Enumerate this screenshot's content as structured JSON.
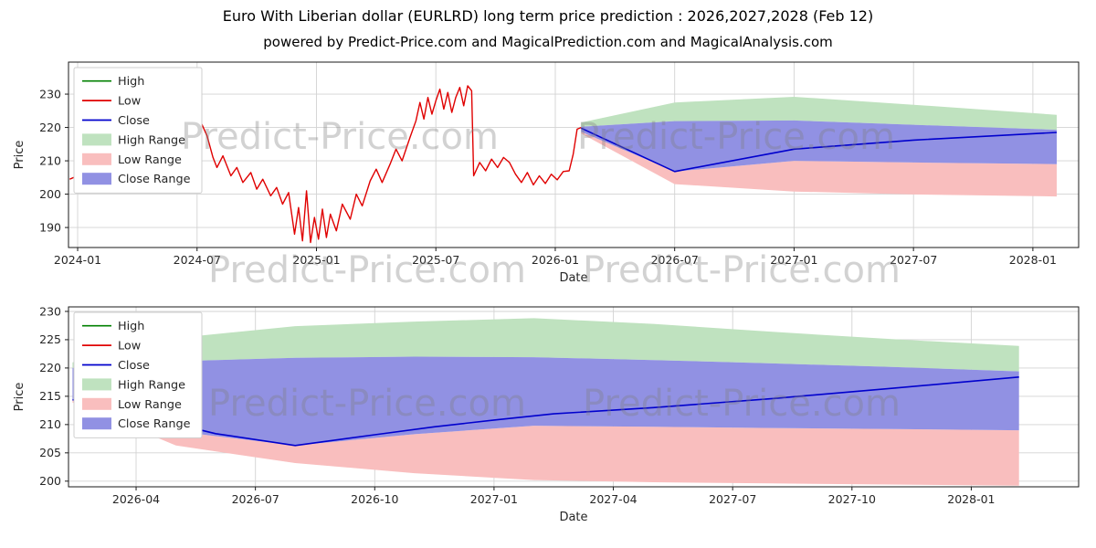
{
  "header": {
    "title": "Euro With Liberian dollar (EURLRD) long term price prediction : 2026,2027,2028 (Feb 12)",
    "subtitle": "powered by Predict-Price.com and MagicalPrediction.com and MagicalAnalysis.com"
  },
  "watermark": {
    "text": "Predict-Price.com"
  },
  "colors": {
    "high": "#008000",
    "low": "#e00000",
    "close": "#0000cd",
    "high_range": "#bfe2bf",
    "low_range": "#f9bebe",
    "close_range": "#9191e3",
    "grid": "#d3d3d3",
    "frame": "#1a1a1a",
    "text": "#262626"
  },
  "chart_data": [
    {
      "type": "line",
      "title": "",
      "xlabel": "Date",
      "ylabel": "Price",
      "x_unit": "months since 2024-01",
      "xlim": [
        -0.46,
        50.3
      ],
      "ylim": [
        184.0,
        239.6
      ],
      "grid": true,
      "legend_position": "upper left",
      "x_ticks": [
        {
          "v": 0,
          "label": "2024-01"
        },
        {
          "v": 6,
          "label": "2024-07"
        },
        {
          "v": 12,
          "label": "2025-01"
        },
        {
          "v": 18,
          "label": "2025-07"
        },
        {
          "v": 24,
          "label": "2026-01"
        },
        {
          "v": 30,
          "label": "2026-07"
        },
        {
          "v": 36,
          "label": "2027-01"
        },
        {
          "v": 42,
          "label": "2027-07"
        },
        {
          "v": 48,
          "label": "2028-01"
        }
      ],
      "y_ticks": [
        190,
        200,
        210,
        220,
        230
      ],
      "legend": [
        {
          "label": "High",
          "type": "line",
          "color_key": "high"
        },
        {
          "label": "Low",
          "type": "line",
          "color_key": "low"
        },
        {
          "label": "Close",
          "type": "line",
          "color_key": "close"
        },
        {
          "label": "High Range",
          "type": "patch",
          "color_key": "high_range"
        },
        {
          "label": "Low Range",
          "type": "patch",
          "color_key": "low_range"
        },
        {
          "label": "Close Range",
          "type": "patch",
          "color_key": "close_range"
        }
      ],
      "bands": [
        {
          "name": "high-range",
          "color_key": "high_range",
          "x": [
            25.3,
            30,
            36,
            42,
            49.2
          ],
          "upper": [
            221.5,
            227.5,
            229.2,
            226.8,
            223.8
          ],
          "lower": [
            220.2,
            221.9,
            222.1,
            220.8,
            219.3
          ]
        },
        {
          "name": "low-range",
          "color_key": "low_range",
          "x": [
            25.3,
            30,
            36,
            42,
            49.2
          ],
          "upper": [
            218.7,
            206.8,
            210.0,
            209.5,
            209.0
          ],
          "lower": [
            218.2,
            203.0,
            200.8,
            199.9,
            199.3
          ]
        },
        {
          "name": "close-range",
          "color_key": "close_range",
          "x": [
            25.3,
            30,
            36,
            42,
            49.2
          ],
          "upper": [
            220.2,
            221.9,
            222.1,
            220.8,
            219.3
          ],
          "lower": [
            218.7,
            206.8,
            210.0,
            209.5,
            209.0
          ]
        }
      ],
      "lines": [
        {
          "name": "close-prediction",
          "color_key": "close",
          "width": 1.6,
          "x": [
            25.3,
            30,
            36,
            42,
            49.2
          ],
          "y": [
            219.8,
            206.8,
            213.5,
            216.2,
            218.5
          ]
        },
        {
          "name": "history-low",
          "color_key": "low",
          "width": 1.4,
          "x": [
            -0.4,
            0,
            0.4,
            0.7,
            1,
            1.3,
            1.7,
            2,
            2.2,
            2.5,
            2.8,
            3,
            3.2,
            3.5,
            3.8,
            4,
            4.3,
            4.6,
            5,
            5.3,
            5.7,
            6,
            6.2,
            6.5,
            6.8,
            7,
            7.3,
            7.7,
            8,
            8.3,
            8.7,
            9,
            9.3,
            9.7,
            10,
            10.3,
            10.6,
            10.9,
            11.1,
            11.3,
            11.5,
            11.7,
            11.9,
            12.1,
            12.3,
            12.5,
            12.7,
            13,
            13.3,
            13.7,
            14,
            14.3,
            14.7,
            15,
            15.3,
            15.7,
            16,
            16.3,
            16.7,
            17,
            17.2,
            17.4,
            17.6,
            17.8,
            18,
            18.2,
            18.4,
            18.6,
            18.8,
            19,
            19.2,
            19.4,
            19.6,
            19.8,
            19.9,
            20.2,
            20.5,
            20.8,
            21.1,
            21.4,
            21.7,
            22,
            22.3,
            22.6,
            22.9,
            23.2,
            23.5,
            23.8,
            24.1,
            24.4,
            24.7,
            24.9,
            25.1,
            25.3
          ],
          "y": [
            204.5,
            205.5,
            207.5,
            205,
            212,
            215,
            209.5,
            214,
            217.5,
            211.5,
            216,
            220.5,
            214.5,
            218,
            213.5,
            219.5,
            221,
            215.5,
            218.5,
            213.5,
            216.5,
            214,
            221.5,
            217.5,
            211,
            208,
            211.5,
            205.5,
            208,
            203.5,
            206.5,
            201.5,
            204.5,
            199.5,
            202,
            197,
            200.5,
            188,
            196,
            186,
            201,
            185.5,
            193,
            186.5,
            195.5,
            187,
            194,
            189,
            197,
            192.5,
            200,
            196.5,
            204,
            207.5,
            203.5,
            209,
            213.5,
            210,
            217,
            222,
            227.5,
            222.5,
            229,
            224,
            228,
            231.5,
            225.5,
            230.5,
            224.5,
            229,
            232,
            226.5,
            232.5,
            231,
            205.5,
            209.5,
            207,
            210.5,
            208,
            211,
            209.5,
            206,
            203.5,
            206.5,
            202.8,
            205.5,
            203.2,
            206,
            204.3,
            206.8,
            207,
            212,
            219.5,
            220
          ]
        }
      ]
    },
    {
      "type": "line",
      "title": "",
      "xlabel": "Date",
      "ylabel": "Price",
      "x_unit": "months since 2024-01",
      "xlim": [
        25.3,
        50.7
      ],
      "ylim": [
        199.0,
        230.8
      ],
      "grid": true,
      "legend_position": "upper left",
      "x_ticks": [
        {
          "v": 27,
          "label": "2026-04"
        },
        {
          "v": 30,
          "label": "2026-07"
        },
        {
          "v": 33,
          "label": "2026-10"
        },
        {
          "v": 36,
          "label": "2027-01"
        },
        {
          "v": 39,
          "label": "2027-04"
        },
        {
          "v": 42,
          "label": "2027-07"
        },
        {
          "v": 45,
          "label": "2027-10"
        },
        {
          "v": 48,
          "label": "2028-01"
        }
      ],
      "y_ticks": [
        200,
        205,
        210,
        215,
        220,
        225,
        230
      ],
      "legend": [
        {
          "label": "High",
          "type": "line",
          "color_key": "high"
        },
        {
          "label": "Low",
          "type": "line",
          "color_key": "low"
        },
        {
          "label": "Close",
          "type": "line",
          "color_key": "close"
        },
        {
          "label": "High Range",
          "type": "patch",
          "color_key": "high_range"
        },
        {
          "label": "Low Range",
          "type": "patch",
          "color_key": "low_range"
        },
        {
          "label": "Close Range",
          "type": "patch",
          "color_key": "close_range"
        }
      ],
      "bands": [
        {
          "name": "high-range",
          "color_key": "high_range",
          "x": [
            25.4,
            28,
            31,
            34,
            37,
            40,
            43,
            46,
            49.2
          ],
          "upper": [
            221.0,
            225.3,
            227.4,
            228.2,
            228.8,
            227.8,
            226.4,
            225.1,
            223.9
          ],
          "lower": [
            220.0,
            221.2,
            221.8,
            222.0,
            221.9,
            221.4,
            220.8,
            220.2,
            219.4
          ]
        },
        {
          "name": "low-range",
          "color_key": "low_range",
          "x": [
            25.4,
            28,
            31,
            34,
            37,
            40,
            43,
            46,
            49.2
          ],
          "upper": [
            214.3,
            208.8,
            206.3,
            208.3,
            209.8,
            209.6,
            209.4,
            209.2,
            209.0
          ],
          "lower": [
            213.9,
            206.3,
            203.2,
            201.4,
            200.2,
            199.8,
            199.6,
            199.4,
            199.2
          ]
        },
        {
          "name": "close-range",
          "color_key": "close_range",
          "x": [
            25.4,
            28,
            31,
            34,
            37,
            40,
            43,
            46,
            49.2
          ],
          "upper": [
            220.0,
            221.2,
            221.8,
            222.0,
            221.9,
            221.4,
            220.8,
            220.2,
            219.4
          ],
          "lower": [
            214.3,
            208.8,
            206.3,
            208.3,
            209.8,
            209.6,
            209.4,
            209.2,
            209.0
          ]
        }
      ],
      "lines": [
        {
          "name": "close-prediction",
          "color_key": "close",
          "width": 1.6,
          "x": [
            25.4,
            27,
            29,
            31,
            33,
            34.5,
            36,
            37.5,
            40,
            43,
            46,
            49.2
          ],
          "y": [
            214.4,
            211.8,
            208.4,
            206.3,
            208.2,
            209.6,
            210.8,
            211.9,
            213.0,
            214.6,
            216.4,
            218.4
          ]
        }
      ]
    }
  ]
}
